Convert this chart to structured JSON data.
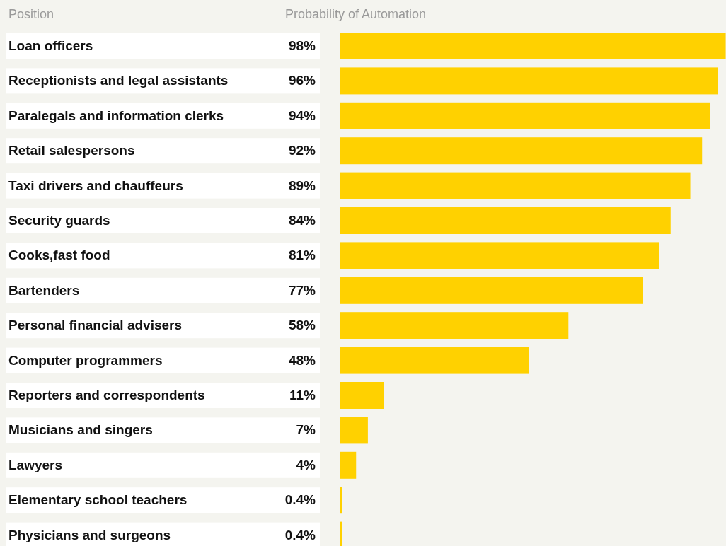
{
  "chart_data": {
    "type": "bar",
    "orientation": "horizontal",
    "ylabel": "Position",
    "xlabel": "Probability of Automation",
    "categories": [
      "Loan officers",
      "Receptionists and legal assistants",
      "Paralegals and information clerks",
      "Retail salespersons",
      "Taxi drivers and chauffeurs",
      "Security guards",
      "Cooks,fast food",
      "Bartenders",
      "Personal financial advisers",
      "Computer programmers",
      "Reporters and correspondents",
      "Musicians and singers",
      "Lawyers",
      "Elementary school teachers",
      "Physicians and surgeons"
    ],
    "values": [
      98,
      96,
      94,
      92,
      89,
      84,
      81,
      77,
      58,
      48,
      11,
      7,
      4,
      0.4,
      0.4
    ],
    "value_labels": [
      "98%",
      "96%",
      "94%",
      "92%",
      "89%",
      "84%",
      "81%",
      "77%",
      "58%",
      "48%",
      "11%",
      "7%",
      "4%",
      "0.4%",
      "0.4%"
    ],
    "color": "#ffd100"
  }
}
